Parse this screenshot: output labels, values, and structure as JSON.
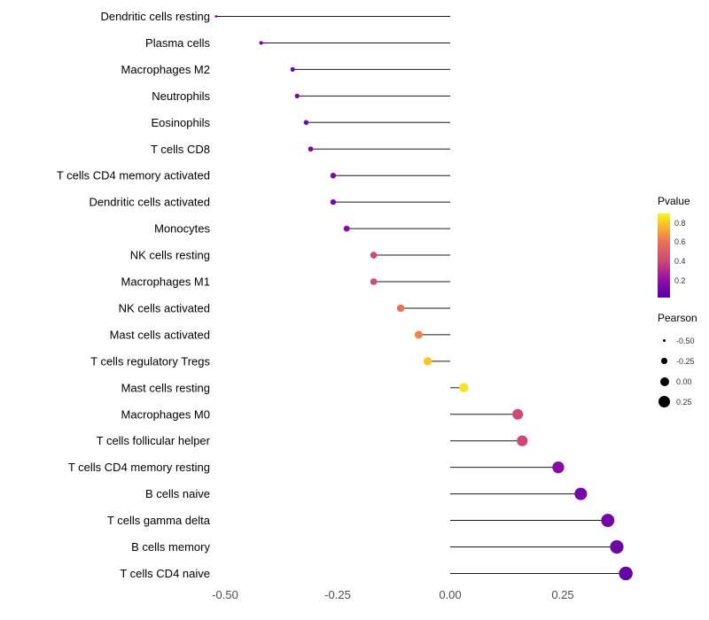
{
  "chart_data": {
    "type": "lollipop",
    "title": "",
    "xlabel": "",
    "ylabel": "",
    "grid": false,
    "background": "#ffffff",
    "xlim": [
      -0.57,
      0.44
    ],
    "x_tick_labels": [
      "-0.50",
      "-0.25",
      "0.00",
      "0.25"
    ],
    "x_tick_values": [
      -0.5,
      -0.25,
      0,
      0.25
    ],
    "categories": [
      "Dendritic cells resting",
      "Plasma cells",
      "Macrophages M2",
      "Neutrophils",
      "Eosinophils",
      "T cells CD8",
      "T cells CD4 memory activated",
      "Dendritic cells activated",
      "Monocytes",
      "NK cells resting",
      "Macrophages M1",
      "NK cells activated",
      "Mast cells activated",
      "T cells regulatory  Tregs",
      "Mast cells resting",
      "Macrophages M0",
      "T cells follicular helper",
      "T cells CD4 memory resting",
      "B cells naive",
      "T cells gamma delta",
      "B cells memory",
      "T cells CD4 naive"
    ],
    "pearson": [
      -0.52,
      -0.42,
      -0.35,
      -0.34,
      -0.32,
      -0.31,
      -0.26,
      -0.26,
      -0.23,
      -0.17,
      -0.17,
      -0.11,
      -0.07,
      -0.05,
      0.03,
      0.15,
      0.16,
      0.24,
      0.29,
      0.35,
      0.37,
      0.39
    ],
    "pvalue": [
      0.05,
      0.08,
      0.1,
      0.1,
      0.1,
      0.1,
      0.12,
      0.12,
      0.18,
      0.4,
      0.42,
      0.6,
      0.65,
      0.8,
      0.88,
      0.42,
      0.4,
      0.18,
      0.12,
      0.1,
      0.08,
      0.05
    ],
    "legends": {
      "pvalue": {
        "title": "Pvalue",
        "position": "right",
        "tick_labels": [
          "0.8",
          "0.6",
          "0.4",
          "0.2"
        ],
        "tick_values": [
          0.8,
          0.6,
          0.4,
          0.2
        ]
      },
      "pearson": {
        "title": "Pearson",
        "position": "right",
        "tick_labels": [
          "-0.50",
          "-0.25",
          "0.00",
          "0.25"
        ],
        "tick_values": [
          -0.5,
          -0.25,
          0,
          0.25
        ]
      }
    },
    "color_scale": {
      "name": "plasma",
      "domain": [
        0.02,
        0.9
      ],
      "stops": [
        {
          "p": 0.0,
          "color": "#5601a4"
        },
        {
          "p": 0.2,
          "color": "#8f0da4"
        },
        {
          "p": 0.4,
          "color": "#cc4778"
        },
        {
          "p": 0.6,
          "color": "#e97158"
        },
        {
          "p": 0.8,
          "color": "#fdc527"
        },
        {
          "p": 0.95,
          "color": "#f0f921"
        }
      ]
    }
  }
}
